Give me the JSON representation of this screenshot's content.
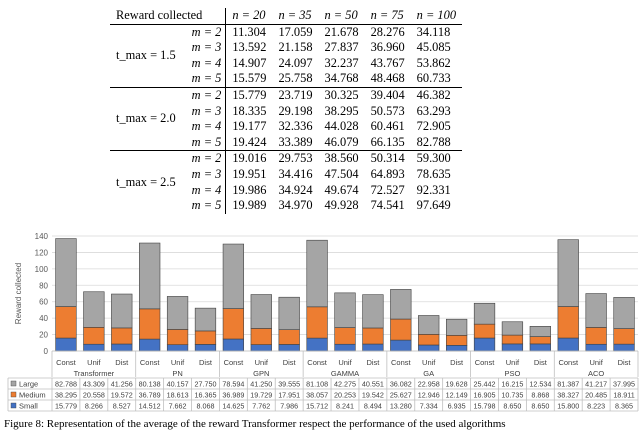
{
  "table": {
    "header_label": "Reward collected",
    "columns": [
      "n = 20",
      "n = 35",
      "n = 50",
      "n = 75",
      "n = 100"
    ],
    "groups": [
      {
        "label": "t_max = 1.5",
        "rows": [
          {
            "m": "m = 2",
            "values": [
              "11.304",
              "17.059",
              "21.678",
              "28.276",
              "34.118"
            ]
          },
          {
            "m": "m = 3",
            "values": [
              "13.592",
              "21.158",
              "27.837",
              "36.960",
              "45.085"
            ]
          },
          {
            "m": "m = 4",
            "values": [
              "14.907",
              "24.097",
              "32.237",
              "43.767",
              "53.862"
            ]
          },
          {
            "m": "m = 5",
            "values": [
              "15.579",
              "25.758",
              "34.768",
              "48.468",
              "60.733"
            ]
          }
        ]
      },
      {
        "label": "t_max = 2.0",
        "rows": [
          {
            "m": "m = 2",
            "values": [
              "15.779",
              "23.719",
              "30.325",
              "39.404",
              "46.382"
            ]
          },
          {
            "m": "m = 3",
            "values": [
              "18.335",
              "29.198",
              "38.295",
              "50.573",
              "63.293"
            ]
          },
          {
            "m": "m = 4",
            "values": [
              "19.177",
              "32.336",
              "44.028",
              "60.461",
              "72.905"
            ]
          },
          {
            "m": "m = 5",
            "values": [
              "19.424",
              "33.389",
              "46.079",
              "66.135",
              "82.788"
            ]
          }
        ]
      },
      {
        "label": "t_max = 2.5",
        "rows": [
          {
            "m": "m = 2",
            "values": [
              "19.016",
              "29.753",
              "38.560",
              "50.314",
              "59.300"
            ]
          },
          {
            "m": "m = 3",
            "values": [
              "19.951",
              "34.416",
              "47.504",
              "64.893",
              "78.635"
            ]
          },
          {
            "m": "m = 4",
            "values": [
              "19.986",
              "34.924",
              "49.674",
              "72.527",
              "92.331"
            ]
          },
          {
            "m": "m = 5",
            "values": [
              "19.989",
              "34.970",
              "49.928",
              "74.541",
              "97.649"
            ]
          }
        ]
      }
    ]
  },
  "chart_data": {
    "type": "bar",
    "stacked": true,
    "ylabel": "Reward collected",
    "ylim": [
      0,
      140
    ],
    "yticks": [
      0,
      20,
      40,
      60,
      80,
      100,
      120,
      140
    ],
    "grid": true,
    "groups": [
      "Transformer",
      "PN",
      "GPN",
      "GAMMA",
      "GA",
      "PSO",
      "ACO"
    ],
    "categories": [
      "Const",
      "Unif",
      "Dist",
      "Const",
      "Unif",
      "Dist",
      "Const",
      "Unif",
      "Dist",
      "Const",
      "Unif",
      "Dist",
      "Const",
      "Unif",
      "Dist",
      "Const",
      "Unif",
      "Dist",
      "Const",
      "Unif",
      "Dist"
    ],
    "series": [
      {
        "name": "Large",
        "color": "#a5a5a5",
        "values": [
          82.788,
          43.309,
          41.256,
          80.138,
          40.157,
          27.75,
          78.594,
          41.25,
          39.555,
          81.108,
          42.275,
          40.551,
          36.082,
          22.958,
          19.628,
          25.442,
          16.215,
          12.534,
          81.387,
          41.217,
          37.995
        ]
      },
      {
        "name": "Medium",
        "color": "#ed7d31",
        "values": [
          38.295,
          20.558,
          19.572,
          36.789,
          18.613,
          16.365,
          36.989,
          19.729,
          17.951,
          38.057,
          20.253,
          19.542,
          25.627,
          12.946,
          12.149,
          16.905,
          10.735,
          8.868,
          38.327,
          20.485,
          18.911
        ]
      },
      {
        "name": "Small",
        "color": "#4472c4",
        "values": [
          15.779,
          8.266,
          8.527,
          14.512,
          7.662,
          8.068,
          14.625,
          7.762,
          7.986,
          15.712,
          8.241,
          8.494,
          13.28,
          7.334,
          6.935,
          15.798,
          8.65,
          8.65,
          15.8,
          8.223,
          8.365
        ]
      }
    ],
    "table_rows": [
      {
        "label": "Large",
        "color": "#a5a5a5",
        "values": [
          "82.788",
          "43.309",
          "41.256",
          "80.138",
          "40.157",
          "27.750",
          "78.594",
          "41.250",
          "39.555",
          "81.108",
          "42.275",
          "40.551",
          "36.082",
          "22.958",
          "19.628",
          "25.442",
          "16.215",
          "12.534",
          "81.387",
          "41.217",
          "37.995"
        ]
      },
      {
        "label": "Medium",
        "color": "#ed7d31",
        "values": [
          "38.295",
          "20.558",
          "19.572",
          "36.789",
          "18.613",
          "16.365",
          "36.989",
          "19.729",
          "17.951",
          "38.057",
          "20.253",
          "19.542",
          "25.627",
          "12.946",
          "12.149",
          "16.905",
          "10.735",
          "8.868",
          "38.327",
          "20.485",
          "18.911"
        ]
      },
      {
        "label": "Small",
        "color": "#4472c4",
        "values": [
          "15.779",
          "8.266",
          "8.527",
          "14.512",
          "7.662",
          "8.068",
          "14.625",
          "7.762",
          "7.986",
          "15.712",
          "8.241",
          "8.494",
          "13.280",
          "7.334",
          "6.935",
          "15.798",
          "8.650",
          "8.650",
          "15.800",
          "8.223",
          "8.365"
        ]
      }
    ]
  },
  "caption": "Figure 8: Representation of the average of the reward Transformer respect the performance of the used algorithms"
}
